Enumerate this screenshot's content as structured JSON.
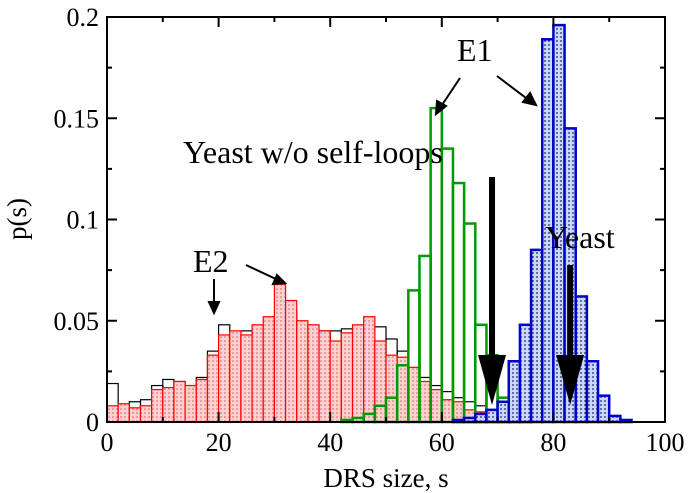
{
  "chart_data": {
    "type": "bar",
    "title": "",
    "xlabel": "DRS size, s",
    "ylabel": "p(s)",
    "xlim": [
      0,
      100
    ],
    "ylim": [
      0,
      0.2
    ],
    "xticks": [
      0,
      20,
      40,
      60,
      80,
      100
    ],
    "xtick_labels": [
      "0",
      "20",
      "40",
      "60",
      "80",
      "100"
    ],
    "yticks": [
      0,
      0.05,
      0.1,
      0.15,
      0.2
    ],
    "ytick_labels": [
      "0",
      "0.05",
      "0.1",
      "0.15",
      "0.2"
    ],
    "bin_width": 2,
    "series": [
      {
        "name": "E2 black outline",
        "color": "#000000",
        "fill": "none",
        "bins": [
          0,
          2,
          4,
          6,
          8,
          10,
          12,
          14,
          16,
          18,
          20,
          22,
          24,
          26,
          28,
          30,
          32,
          34,
          36,
          38,
          40,
          42,
          44,
          46,
          48,
          50,
          52,
          54,
          56,
          58,
          60,
          62,
          64,
          66,
          68,
          70
        ],
        "values": [
          0.019,
          0.008,
          0.01,
          0.011,
          0.018,
          0.021,
          0.02,
          0.018,
          0.022,
          0.035,
          0.048,
          0.04,
          0.045,
          0.04,
          0.043,
          0.047,
          0.055,
          0.045,
          0.044,
          0.045,
          0.045,
          0.046,
          0.044,
          0.043,
          0.047,
          0.041,
          0.035,
          0.025,
          0.022,
          0.018,
          0.015,
          0.012,
          0.01,
          0.008,
          0.003,
          0.002
        ]
      },
      {
        "name": "E2 red dotted",
        "color": "#ff0000",
        "fill": "dots",
        "bins": [
          0,
          2,
          4,
          6,
          8,
          10,
          12,
          14,
          16,
          18,
          20,
          22,
          24,
          26,
          28,
          30,
          32,
          34,
          36,
          38,
          40,
          42,
          44,
          46,
          48,
          50,
          52,
          54,
          56,
          58,
          60,
          62,
          64,
          66,
          68,
          70
        ],
        "values": [
          0.008,
          0.009,
          0.007,
          0.008,
          0.016,
          0.017,
          0.02,
          0.018,
          0.021,
          0.033,
          0.043,
          0.045,
          0.043,
          0.048,
          0.052,
          0.068,
          0.06,
          0.05,
          0.048,
          0.045,
          0.04,
          0.044,
          0.048,
          0.052,
          0.04,
          0.033,
          0.032,
          0.027,
          0.02,
          0.016,
          0.011,
          0.01,
          0.006,
          0.005,
          0.002,
          0.001
        ]
      },
      {
        "name": "E1 green",
        "color": "#009900",
        "fill": "none",
        "bins": [
          42,
          44,
          46,
          48,
          50,
          52,
          54,
          56,
          58,
          60,
          62,
          64,
          66,
          68,
          70,
          72,
          74
        ],
        "values": [
          0.001,
          0.002,
          0.004,
          0.008,
          0.012,
          0.028,
          0.065,
          0.082,
          0.155,
          0.135,
          0.118,
          0.098,
          0.048,
          0.033,
          0.012,
          0.005,
          0.002
        ]
      },
      {
        "name": "E1 blue dotted",
        "color": "#0000cc",
        "fill": "dots",
        "bins": [
          62,
          64,
          66,
          68,
          70,
          72,
          74,
          76,
          78,
          80,
          82,
          84,
          86,
          88,
          90,
          92
        ],
        "values": [
          0.001,
          0.002,
          0.004,
          0.006,
          0.01,
          0.03,
          0.048,
          0.085,
          0.189,
          0.196,
          0.145,
          0.062,
          0.03,
          0.013,
          0.003,
          0.001
        ]
      }
    ],
    "annotations": [
      {
        "text": "E1"
      },
      {
        "text": "E2"
      },
      {
        "text": "Yeast w/o self-loops"
      },
      {
        "text": "Yeast"
      }
    ],
    "markers": [
      {
        "label": "Yeast w/o self-loops",
        "x": 69
      },
      {
        "label": "Yeast",
        "x": 83
      }
    ]
  }
}
